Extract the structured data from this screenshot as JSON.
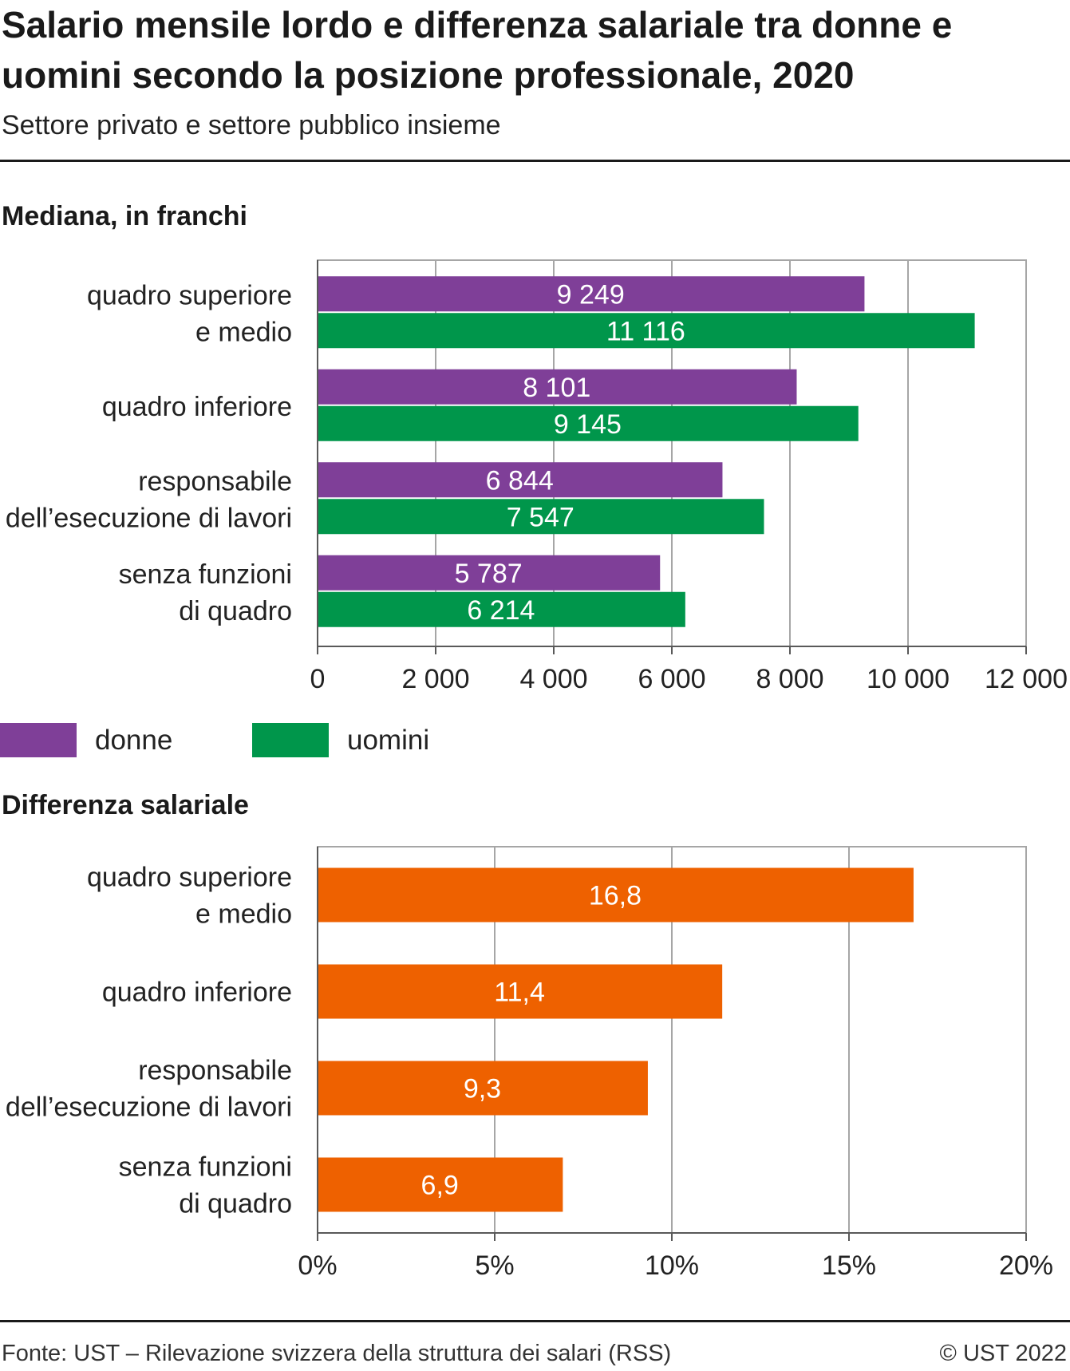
{
  "title": "Salario mensile lordo e differenza salariale tra donne e uomini secondo la posizione professionale, 2020",
  "subtitle": "Settore privato e settore pubblico insieme",
  "source": "Fonte: UST – Rilevazione svizzera della struttura dei salari (RSS)",
  "copyright": "© UST 2022",
  "colors": {
    "donne": "#7f3f98",
    "uomini": "#00964b",
    "gap": "#ee6100",
    "grid": "#a6a6a6",
    "axis": "#595959"
  },
  "legend": {
    "donne": "donne",
    "uomini": "uomini"
  },
  "chart_data": [
    {
      "type": "bar",
      "orientation": "horizontal",
      "section_title": "Mediana, in franchi",
      "categories": [
        [
          "quadro superiore",
          "e medio"
        ],
        [
          "quadro inferiore"
        ],
        [
          "responsabile",
          "dell’esecuzione di lavori"
        ],
        [
          "senza funzioni",
          "di quadro"
        ]
      ],
      "series": [
        {
          "name": "donne",
          "values": [
            9249,
            8101,
            6844,
            5787
          ],
          "labels": [
            "9 249",
            "8 101",
            "6 844",
            "5 787"
          ]
        },
        {
          "name": "uomini",
          "values": [
            11116,
            9145,
            7547,
            6214
          ],
          "labels": [
            "11 116",
            "9 145",
            "7 547",
            "6 214"
          ]
        }
      ],
      "xlim": [
        0,
        12000
      ],
      "ticks": [
        0,
        2000,
        4000,
        6000,
        8000,
        10000,
        12000
      ],
      "tick_labels": [
        "0",
        "2 000",
        "4 000",
        "6 000",
        "8 000",
        "10 000",
        "12 000"
      ],
      "grid": true,
      "legend_position": "bottom-left"
    },
    {
      "type": "bar",
      "orientation": "horizontal",
      "section_title": "Differenza salariale",
      "categories": [
        [
          "quadro superiore",
          "e medio"
        ],
        [
          "quadro inferiore"
        ],
        [
          "responsabile",
          "dell’esecuzione di lavori"
        ],
        [
          "senza funzioni",
          "di quadro"
        ]
      ],
      "series": [
        {
          "values": [
            16.8,
            11.4,
            9.3,
            6.9
          ],
          "labels": [
            "16,8",
            "11,4",
            "9,3",
            "6,9"
          ]
        }
      ],
      "xlim": [
        0,
        20
      ],
      "ticks": [
        0,
        5,
        10,
        15,
        20
      ],
      "tick_labels": [
        "0%",
        "5%",
        "10%",
        "15%",
        "20%"
      ],
      "grid": true
    }
  ]
}
